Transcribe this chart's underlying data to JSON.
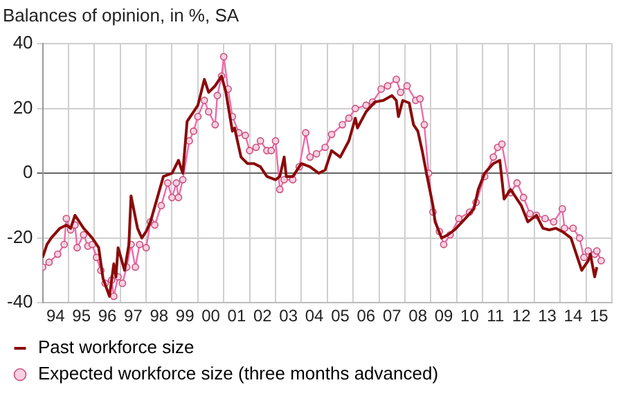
{
  "chart_data": {
    "type": "line",
    "title": "Balances of opinion, in %, SA",
    "xlim": [
      "1994",
      "2016"
    ],
    "xticks": [
      {
        "value": "1994",
        "label": null
      },
      {
        "value": "1994-07",
        "label": "94"
      },
      {
        "value": "1995",
        "label": null
      },
      {
        "value": "1995-07",
        "label": "95"
      },
      {
        "value": "1996",
        "label": null
      },
      {
        "value": "1996-07",
        "label": "96"
      },
      {
        "value": "1997",
        "label": null
      },
      {
        "value": "1997-07",
        "label": "97"
      },
      {
        "value": "1998",
        "label": null
      },
      {
        "value": "1998-07",
        "label": "98"
      },
      {
        "value": "1999",
        "label": null
      },
      {
        "value": "1999-07",
        "label": "99"
      },
      {
        "value": "2000",
        "label": null
      },
      {
        "value": "2000-07",
        "label": "00"
      },
      {
        "value": "2001",
        "label": null
      },
      {
        "value": "2001-07",
        "label": "01"
      },
      {
        "value": "2002",
        "label": null
      },
      {
        "value": "2002-07",
        "label": "02"
      },
      {
        "value": "2003",
        "label": null
      },
      {
        "value": "2003-07",
        "label": "03"
      },
      {
        "value": "2004",
        "label": null
      },
      {
        "value": "2004-07",
        "label": "04"
      },
      {
        "value": "2005",
        "label": null
      },
      {
        "value": "2005-07",
        "label": "05"
      },
      {
        "value": "2006",
        "label": null
      },
      {
        "value": "2006-07",
        "label": "06"
      },
      {
        "value": "2007",
        "label": null
      },
      {
        "value": "2007-07",
        "label": "07"
      },
      {
        "value": "2008",
        "label": null
      },
      {
        "value": "2008-07",
        "label": "08"
      },
      {
        "value": "2009",
        "label": null
      },
      {
        "value": "2009-07",
        "label": "09"
      },
      {
        "value": "2010",
        "label": null
      },
      {
        "value": "2010-07",
        "label": "10"
      },
      {
        "value": "2011",
        "label": null
      },
      {
        "value": "2011-07",
        "label": "11"
      },
      {
        "value": "2012",
        "label": null
      },
      {
        "value": "2012-07",
        "label": "12"
      },
      {
        "value": "2013",
        "label": null
      },
      {
        "value": "2013-07",
        "label": "13"
      },
      {
        "value": "2014",
        "label": null
      },
      {
        "value": "2014-07",
        "label": "14"
      },
      {
        "value": "2015",
        "label": null
      },
      {
        "value": "2015-07",
        "label": "15"
      },
      {
        "value": "2016",
        "label": null
      }
    ],
    "ylim": [
      -40,
      40
    ],
    "yticks": [
      -40,
      -20,
      0,
      20,
      40
    ],
    "grid": true,
    "legend": "bottom",
    "series": [
      {
        "name": "Past workforce size",
        "color": "#8b0a0a",
        "marker": "none",
        "line_style": "solid",
        "x": [
          "1994-01",
          "1994-03",
          "1994-05",
          "1994-09",
          "1994-12",
          "1995-02",
          "1995-04",
          "1995-08",
          "1995-12",
          "1996-03",
          "1996-05",
          "1996-08",
          "1996-10",
          "1996-11",
          "1996-12",
          "1997-03",
          "1997-05",
          "1997-06",
          "1997-09",
          "1997-11",
          "1998-01",
          "1998-03",
          "1998-06",
          "1998-09",
          "1999-01",
          "1999-04",
          "1999-06",
          "1999-08",
          "2000-01",
          "2000-04",
          "2000-06",
          "2000-09",
          "2000-12",
          "2001-02",
          "2001-05",
          "2001-06",
          "2001-09",
          "2001-12",
          "2002-03",
          "2002-06",
          "2002-09",
          "2003-01",
          "2003-03",
          "2003-05",
          "2003-06",
          "2003-09",
          "2004-01",
          "2004-05",
          "2004-09",
          "2004-12",
          "2005-03",
          "2005-07",
          "2005-11",
          "2006-02",
          "2006-03",
          "2006-07",
          "2006-11",
          "2007-03",
          "2007-07",
          "2007-09",
          "2007-10",
          "2007-12",
          "2008-03",
          "2008-05",
          "2008-07",
          "2008-09",
          "2008-11",
          "2009-02",
          "2009-03",
          "2009-06",
          "2009-09",
          "2009-12",
          "2010-05",
          "2010-09",
          "2010-11",
          "2011-02",
          "2011-06",
          "2011-09",
          "2011-11",
          "2012-02",
          "2012-05",
          "2012-07",
          "2012-10",
          "2013-02",
          "2013-05",
          "2013-08",
          "2013-11",
          "2014-02",
          "2014-06",
          "2014-09",
          "2014-11",
          "2015-02",
          "2015-03",
          "2015-05",
          "2015-06"
        ],
        "values": [
          -26,
          -22,
          -20,
          -17,
          -16,
          -17,
          -13,
          -17,
          -20,
          -23,
          -32.5,
          -38,
          -28,
          -32,
          -23,
          -30,
          -22,
          -7,
          -17,
          -20,
          -18,
          -15,
          -8,
          -1,
          0,
          4,
          0,
          16,
          21,
          29,
          25,
          27,
          30,
          25,
          13,
          14,
          5,
          3,
          3,
          2,
          -1,
          -2,
          -1,
          5,
          -1,
          -1,
          3,
          2,
          0,
          1,
          7,
          5,
          10,
          17,
          14,
          19,
          22,
          22.5,
          24,
          22.5,
          17.5,
          22.5,
          21.7,
          15,
          13,
          7,
          0,
          -10,
          -15,
          -20,
          -19,
          -17.5,
          -14,
          -11,
          -5,
          0,
          3,
          4,
          -8,
          -5,
          -8,
          -10,
          -15,
          -13,
          -17,
          -17.5,
          -17,
          -18,
          -20,
          -26,
          -30,
          -27,
          -25,
          -32,
          -29
        ]
      },
      {
        "name": "Expected workforce size (three months advanced)",
        "color": "#f06aa8",
        "marker": "circle",
        "line_style": "solid",
        "x": [
          "1994-01",
          "1994-04",
          "1994-08",
          "1994-11",
          "1994-12",
          "1995-02",
          "1995-04",
          "1995-05",
          "1995-08",
          "1995-10",
          "1995-12",
          "1996-02",
          "1996-04",
          "1996-06",
          "1996-09",
          "1996-10",
          "1996-12",
          "1997-02",
          "1997-04",
          "1997-06",
          "1997-08",
          "1997-10",
          "1998-01",
          "1998-03",
          "1998-05",
          "1998-08",
          "1998-11",
          "1999-01",
          "1999-03",
          "1999-04",
          "1999-06",
          "1999-09",
          "1999-11",
          "2000-01",
          "2000-04",
          "2000-06",
          "2000-09",
          "2000-10",
          "2000-12",
          "2001-01",
          "2001-03",
          "2001-05",
          "2001-08",
          "2001-11",
          "2002-01",
          "2002-04",
          "2002-06",
          "2002-09",
          "2002-11",
          "2003-01",
          "2003-03",
          "2003-05",
          "2003-09",
          "2003-12",
          "2004-03",
          "2004-05",
          "2004-08",
          "2004-12",
          "2005-03",
          "2005-08",
          "2005-11",
          "2006-02",
          "2006-07",
          "2006-10",
          "2007-02",
          "2007-05",
          "2007-09",
          "2007-11",
          "2008-02",
          "2008-06",
          "2008-08",
          "2008-10",
          "2008-12",
          "2009-02",
          "2009-05",
          "2009-07",
          "2009-10",
          "2010-02",
          "2010-07",
          "2010-10",
          "2011-02",
          "2011-06",
          "2011-08",
          "2011-10",
          "2012-02",
          "2012-05",
          "2012-08",
          "2012-11",
          "2013-02",
          "2013-06",
          "2013-10",
          "2014-02",
          "2014-03",
          "2014-07",
          "2014-10",
          "2014-12",
          "2015-02",
          "2015-05",
          "2015-06",
          "2015-08"
        ],
        "values": [
          -29,
          -27.5,
          -25,
          -22,
          -14,
          -17.5,
          -16,
          -23,
          -19,
          -22.5,
          -22,
          -26,
          -30,
          -34,
          -33,
          -38,
          -32,
          -34,
          -29,
          -22,
          -29,
          -22,
          -23,
          -15,
          -16,
          -10,
          -3,
          -7.5,
          -3,
          -7.5,
          -2,
          10,
          13,
          17.5,
          22.5,
          19,
          15,
          24,
          30,
          36,
          26,
          17.5,
          12.5,
          11.7,
          7,
          8,
          10,
          7,
          7,
          10,
          -5,
          -2,
          -2,
          2,
          12.5,
          5,
          6,
          8,
          12,
          15,
          17,
          20,
          21,
          22,
          26,
          27,
          29,
          25,
          27,
          22.5,
          23,
          15,
          0,
          -12,
          -18,
          -22,
          -19,
          -14,
          -12,
          -9,
          -1,
          5,
          8,
          9,
          -6,
          -3,
          -7.5,
          -12.5,
          -13,
          -14,
          -15,
          -11,
          -17,
          -17,
          -20,
          -26,
          -24,
          -25,
          -24,
          -27
        ]
      }
    ]
  }
}
